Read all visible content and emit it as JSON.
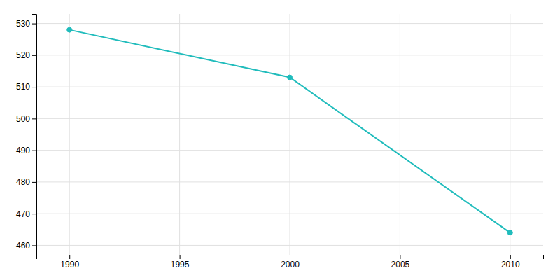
{
  "chart_data": {
    "type": "line",
    "x": [
      1990,
      2000,
      2010
    ],
    "values": [
      528,
      513,
      464
    ],
    "color": "#20bcbc",
    "marker": "circle",
    "xlim": [
      1988.5,
      2011.5
    ],
    "ylim": [
      457,
      533
    ],
    "xticks": [
      1990,
      1995,
      2000,
      2005,
      2010
    ],
    "yticks": [
      460,
      470,
      480,
      490,
      500,
      510,
      520,
      530
    ],
    "grid": true
  }
}
